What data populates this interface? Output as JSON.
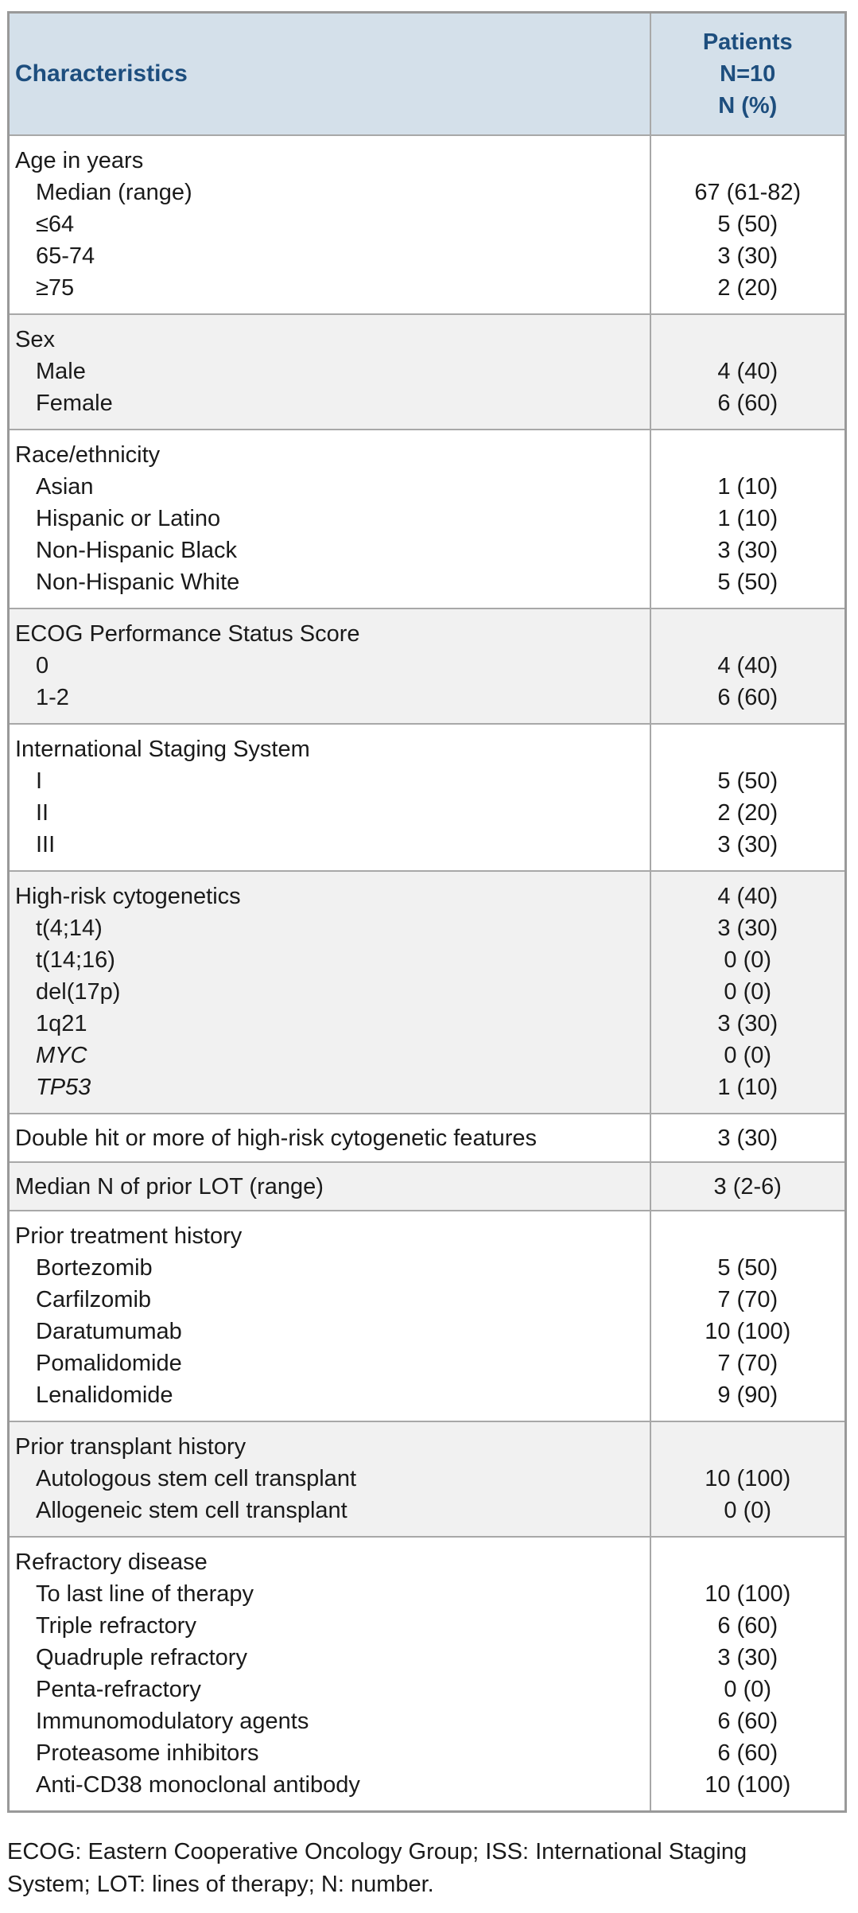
{
  "colors": {
    "header_bg": "#d4e0ea",
    "header_text": "#1d4e7e",
    "shaded_row_bg": "#f1f1f1",
    "border_outer": "#999999",
    "border_inner": "#a8a8a8",
    "text": "#1a1a1a"
  },
  "table": {
    "header": {
      "col1": "Characteristics",
      "col2_lines": [
        "Patients",
        "N=10",
        "N (%)"
      ]
    },
    "sections": [
      {
        "shaded": false,
        "rows": [
          {
            "label": "Age in years",
            "indent": false,
            "italic": false,
            "value": ""
          },
          {
            "label": "Median (range)",
            "indent": true,
            "italic": false,
            "value": "67 (61-82)"
          },
          {
            "label": "≤64",
            "indent": true,
            "italic": false,
            "value": "5 (50)"
          },
          {
            "label": "65-74",
            "indent": true,
            "italic": false,
            "value": "3 (30)"
          },
          {
            "label": "≥75",
            "indent": true,
            "italic": false,
            "value": "2 (20)"
          }
        ]
      },
      {
        "shaded": true,
        "rows": [
          {
            "label": "Sex",
            "indent": false,
            "italic": false,
            "value": ""
          },
          {
            "label": "Male",
            "indent": true,
            "italic": false,
            "value": "4 (40)"
          },
          {
            "label": "Female",
            "indent": true,
            "italic": false,
            "value": "6 (60)"
          }
        ]
      },
      {
        "shaded": false,
        "rows": [
          {
            "label": "Race/ethnicity",
            "indent": false,
            "italic": false,
            "value": ""
          },
          {
            "label": "Asian",
            "indent": true,
            "italic": false,
            "value": "1 (10)"
          },
          {
            "label": "Hispanic or Latino",
            "indent": true,
            "italic": false,
            "value": "1 (10)"
          },
          {
            "label": "Non-Hispanic Black",
            "indent": true,
            "italic": false,
            "value": "3 (30)"
          },
          {
            "label": "Non-Hispanic White",
            "indent": true,
            "italic": false,
            "value": "5 (50)"
          }
        ]
      },
      {
        "shaded": true,
        "rows": [
          {
            "label": "ECOG Performance Status Score",
            "indent": false,
            "italic": false,
            "value": ""
          },
          {
            "label": "0",
            "indent": true,
            "italic": false,
            "value": "4 (40)"
          },
          {
            "label": "1-2",
            "indent": true,
            "italic": false,
            "value": "6 (60)"
          }
        ]
      },
      {
        "shaded": false,
        "rows": [
          {
            "label": "International Staging System",
            "indent": false,
            "italic": false,
            "value": ""
          },
          {
            "label": "I",
            "indent": true,
            "italic": false,
            "value": "5 (50)"
          },
          {
            "label": "II",
            "indent": true,
            "italic": false,
            "value": "2 (20)"
          },
          {
            "label": "III",
            "indent": true,
            "italic": false,
            "value": "3 (30)"
          }
        ]
      },
      {
        "shaded": true,
        "rows": [
          {
            "label": "High-risk cytogenetics",
            "indent": false,
            "italic": false,
            "value": "4 (40)"
          },
          {
            "label": "t(4;14)",
            "indent": true,
            "italic": false,
            "value": "3 (30)"
          },
          {
            "label": "t(14;16)",
            "indent": true,
            "italic": false,
            "value": "0 (0)"
          },
          {
            "label": "del(17p)",
            "indent": true,
            "italic": false,
            "value": "0 (0)"
          },
          {
            "label": "1q21",
            "indent": true,
            "italic": false,
            "value": "3 (30)"
          },
          {
            "label": "MYC",
            "indent": true,
            "italic": true,
            "value": "0 (0)"
          },
          {
            "label": "TP53",
            "indent": true,
            "italic": true,
            "value": "1 (10)"
          }
        ]
      },
      {
        "shaded": false,
        "rows": [
          {
            "label": "Double hit or more of high-risk cytogenetic features",
            "indent": false,
            "italic": false,
            "value": "3 (30)"
          }
        ]
      },
      {
        "shaded": true,
        "rows": [
          {
            "label": "Median N of prior LOT (range)",
            "indent": false,
            "italic": false,
            "value": "3 (2-6)"
          }
        ]
      },
      {
        "shaded": false,
        "rows": [
          {
            "label": "Prior treatment history",
            "indent": false,
            "italic": false,
            "value": ""
          },
          {
            "label": "Bortezomib",
            "indent": true,
            "italic": false,
            "value": "5 (50)"
          },
          {
            "label": "Carfilzomib",
            "indent": true,
            "italic": false,
            "value": "7 (70)"
          },
          {
            "label": "Daratumumab",
            "indent": true,
            "italic": false,
            "value": "10 (100)"
          },
          {
            "label": "Pomalidomide",
            "indent": true,
            "italic": false,
            "value": "7 (70)"
          },
          {
            "label": "Lenalidomide",
            "indent": true,
            "italic": false,
            "value": "9 (90)"
          }
        ]
      },
      {
        "shaded": true,
        "rows": [
          {
            "label": "Prior transplant history",
            "indent": false,
            "italic": false,
            "value": ""
          },
          {
            "label": "Autologous stem cell transplant",
            "indent": true,
            "italic": false,
            "value": "10 (100)"
          },
          {
            "label": "Allogeneic stem cell transplant",
            "indent": true,
            "italic": false,
            "value": "0 (0)"
          }
        ]
      },
      {
        "shaded": false,
        "rows": [
          {
            "label": "Refractory disease",
            "indent": false,
            "italic": false,
            "value": ""
          },
          {
            "label": "To last line of therapy",
            "indent": true,
            "italic": false,
            "value": "10 (100)"
          },
          {
            "label": "Triple refractory",
            "indent": true,
            "italic": false,
            "value": "6 (60)"
          },
          {
            "label": "Quadruple refractory",
            "indent": true,
            "italic": false,
            "value": "3 (30)"
          },
          {
            "label": "Penta-refractory",
            "indent": true,
            "italic": false,
            "value": "0 (0)"
          },
          {
            "label": "Immunomodulatory agents",
            "indent": true,
            "italic": false,
            "value": "6 (60)"
          },
          {
            "label": "Proteasome inhibitors",
            "indent": true,
            "italic": false,
            "value": "6 (60)"
          },
          {
            "label": "Anti-CD38 monoclonal antibody",
            "indent": true,
            "italic": false,
            "value": "10 (100)"
          }
        ]
      }
    ]
  },
  "footnote_lines": [
    "ECOG: Eastern Cooperative Oncology Group; ISS: International Staging",
    "System; LOT: lines of therapy; N: number."
  ]
}
